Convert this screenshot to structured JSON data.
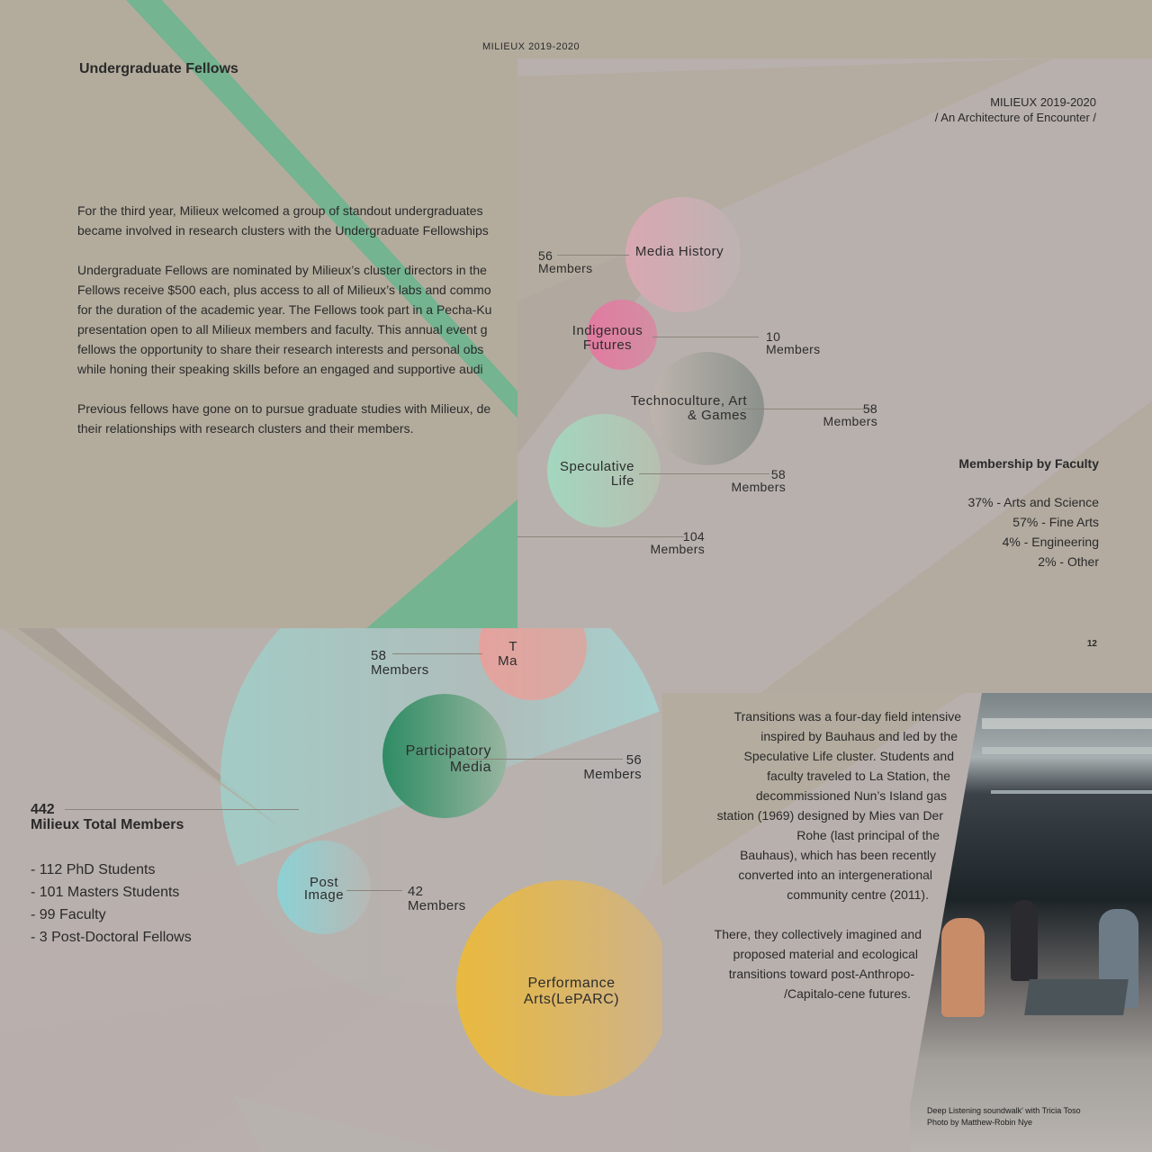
{
  "page_left": {
    "running_head": "MILIEUX 2019-2020",
    "heading": "Undergraduate Fellows",
    "para1_l1": "For the third year, Milieux welcomed a group of standout undergraduates",
    "para1_l2": "became involved in research clusters with the Undergraduate Fellowships",
    "para2_l1": "Undergraduate Fellows are nominated by Milieux’s cluster directors in the",
    "para2_l2": "Fellows receive $500 each, plus access to all of Milieux’s labs and commo",
    "para2_l3": "for the duration of the academic year. The Fellows took part in a Pecha-Ku",
    "para2_l4": "presentation open to all Milieux members and faculty. This annual event g",
    "para2_l5": "fellows the opportunity to share their research interests and personal obs",
    "para2_l6": "while honing their speaking skills before an engaged and supportive audi",
    "para3_l1": "Previous fellows have gone on to pursue graduate studies with Milieux, de",
    "para3_l2": "their relationships with research clusters and their members."
  },
  "page_right": {
    "running_head": "MILIEUX 2019-2020",
    "subtitle": "/ An Architecture of Encounter /",
    "clusters": [
      {
        "name": "Media History",
        "count": "56",
        "unit": "Members"
      },
      {
        "name": "Indigenous\nFutures",
        "count": "10",
        "unit": "Members"
      },
      {
        "name": "Technoculture, Art\n& Games",
        "count": "58",
        "unit": "Members"
      },
      {
        "name": "Speculative\nLife",
        "count": "58",
        "unit": "Members"
      },
      {
        "name": "",
        "count": "104",
        "unit": "Members"
      }
    ],
    "faculty_title": "Membership by Faculty",
    "faculty": [
      "37% - Arts and Science",
      "57% - Fine Arts",
      "4% - Engineering",
      "2% - Other"
    ],
    "page_number": "12"
  },
  "page_bottom": {
    "top_cluster": {
      "name": "T\nMa",
      "count": "58",
      "unit": "Members"
    },
    "participatory": {
      "name": "Participatory\nMedia",
      "count": "56",
      "unit": "Members"
    },
    "post_image": {
      "name": "Post\nImage",
      "count": "42",
      "unit": "Members"
    },
    "performance": {
      "name": "Performance\nArts(LePARC)"
    },
    "total_count": "442",
    "total_label": "Milieux Total Members",
    "breakdown": [
      "- 112 PhD Students",
      "- 101 Masters Students",
      "- 99 Faculty",
      "- 3 Post-Doctoral Fellows"
    ]
  },
  "transitions": {
    "lines": [
      "Transitions was a four-day field intensive",
      "inspired by Bauhaus and led by the",
      "Speculative Life cluster. Students and",
      "faculty traveled to La Station, the",
      "decommissioned Nun’s Island gas",
      "station (1969) designed by Mies van Der",
      "Rohe (last principal of the",
      "Bauhaus), which has been recently",
      "converted into an intergenerational",
      "community centre (2011)."
    ],
    "lines2": [
      "There, they collectively imagined and",
      "proposed material and ecological",
      "transitions toward post-Anthropo-",
      "/Capitalo-cene futures."
    ],
    "caption_l1": "Deep Listening soundwalk' with Tricia Toso",
    "caption_l2": "Photo by Matthew-Robin Nye"
  },
  "colors": {
    "green": "#6db58f",
    "page_bg": "#b3ac9d",
    "panel_bg": "#b8b0ad",
    "pink": "#e27aa0",
    "yellow": "#e9b93e"
  }
}
